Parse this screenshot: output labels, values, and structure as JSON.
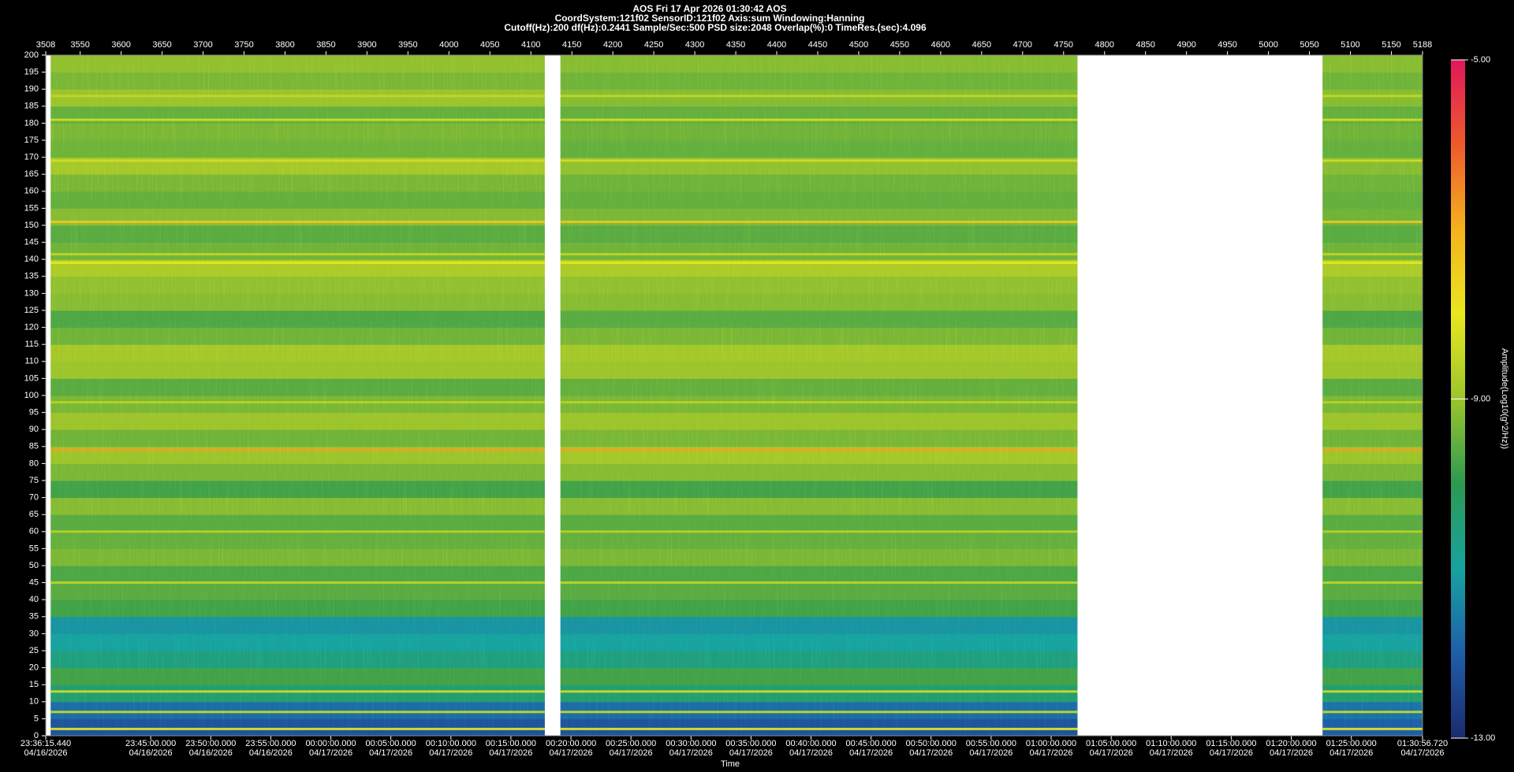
{
  "chart_data": {
    "type": "spectrogram",
    "title": "AOS  Fri 17 Apr 2026 01:30:42  AOS",
    "subtitle": "CoordSystem:121f02   SensorID:121f02   Axis:sum   Windowing:Hanning",
    "settings_line": "Cutoff(Hz):200     df(Hz):0.2441     Sample/Sec:500     PSD size:2048     Overlap(%):0     TimeRes.(sec):4.096",
    "x_label": "Time",
    "colorbar_label": "Amplitude(Log10(g^2/Hz))",
    "xlim": [
      3508,
      5188
    ],
    "xticks": [
      3508,
      3550,
      3600,
      3650,
      3700,
      3750,
      3800,
      3850,
      3900,
      3950,
      4000,
      4050,
      4100,
      4150,
      4200,
      4250,
      4300,
      4350,
      4400,
      4450,
      4500,
      4550,
      4600,
      4650,
      4700,
      4750,
      4800,
      4850,
      4900,
      4950,
      5000,
      5050,
      5100,
      5150,
      5188
    ],
    "x2ticks": [
      {
        "value": 3508,
        "label": "23:36:15.440"
      },
      {
        "value": 3636.1,
        "label": "23:45:00.000"
      },
      {
        "value": 3709.4,
        "label": "23:50:00.000"
      },
      {
        "value": 3782.6,
        "label": "23:55:00.000"
      },
      {
        "value": 3855.9,
        "label": "00:00:00.000"
      },
      {
        "value": 3929.1,
        "label": "00:05:00.000"
      },
      {
        "value": 4002.4,
        "label": "00:10:00.000"
      },
      {
        "value": 4075.6,
        "label": "00:15:00.000"
      },
      {
        "value": 4148.9,
        "label": "00:20:00.000"
      },
      {
        "value": 4222.1,
        "label": "00:25:00.000"
      },
      {
        "value": 4295.4,
        "label": "00:30:00.000"
      },
      {
        "value": 4368.6,
        "label": "00:35:00.000"
      },
      {
        "value": 4441.8,
        "label": "00:40:00.000"
      },
      {
        "value": 4515.1,
        "label": "00:45:00.000"
      },
      {
        "value": 4588.3,
        "label": "00:50:00.000"
      },
      {
        "value": 4661.6,
        "label": "00:55:00.000"
      },
      {
        "value": 4734.8,
        "label": "01:00:00.000"
      },
      {
        "value": 4808.1,
        "label": "01:05:00.000"
      },
      {
        "value": 4881.3,
        "label": "01:10:00.000"
      },
      {
        "value": 4954.6,
        "label": "01:15:00.000"
      },
      {
        "value": 5027.8,
        "label": "01:20:00.000"
      },
      {
        "value": 5101.1,
        "label": "01:25:00.000"
      },
      {
        "value": 5188,
        "label": "01:30:56.720"
      }
    ],
    "x2tick_dates": [
      "04/16/2026",
      "04/16/2026",
      "04/16/2026",
      "04/16/2026",
      "04/17/2026",
      "04/17/2026",
      "04/17/2026",
      "04/17/2026",
      "04/17/2026",
      "04/17/2026",
      "04/17/2026",
      "04/17/2026",
      "04/17/2026",
      "04/17/2026",
      "04/17/2026",
      "04/17/2026",
      "04/17/2026",
      "04/17/2026",
      "04/17/2026",
      "04/17/2026",
      "04/17/2026",
      "04/17/2026",
      "04/17/2026"
    ],
    "ylim": [
      0,
      200
    ],
    "yticks": [
      0,
      5,
      10,
      15,
      20,
      25,
      30,
      35,
      40,
      45,
      50,
      55,
      60,
      65,
      70,
      75,
      80,
      85,
      90,
      95,
      100,
      105,
      110,
      115,
      120,
      125,
      130,
      135,
      140,
      145,
      150,
      155,
      160,
      165,
      170,
      175,
      180,
      185,
      190,
      195,
      200
    ],
    "clim": [
      -13,
      -5
    ],
    "cticks": [
      {
        "value": -13,
        "label": "-13.00"
      },
      {
        "value": -9,
        "label": "-9.00"
      },
      {
        "value": -5,
        "label": "-5.00"
      }
    ],
    "colorscale": [
      "#1c2a6e",
      "#1e5ea8",
      "#18a2a0",
      "#2c9a50",
      "#9cc42c",
      "#e8e81e",
      "#f5b21e",
      "#ee5a2c",
      "#e0185a"
    ],
    "segments": [
      [
        3514,
        4117
      ],
      [
        4136,
        4767
      ],
      [
        5066,
        5188
      ]
    ],
    "freq_bins": [
      0,
      5,
      10,
      15,
      20,
      25,
      30,
      35,
      40,
      45,
      50,
      55,
      60,
      65,
      70,
      75,
      80,
      85,
      90,
      95,
      100,
      105,
      110,
      115,
      120,
      125,
      130,
      135,
      140,
      145,
      150,
      155,
      160,
      165,
      170,
      175,
      180,
      185,
      190,
      195,
      200
    ],
    "z": [
      [
        -12.2,
        -11.8,
        -10.4,
        -9.8,
        -10.6,
        -11.0,
        -11.2,
        -9.8,
        -9.6,
        -9.7,
        -9.3,
        -9.5,
        -9.6,
        -9.2,
        -9.8,
        -9.3,
        -9.0,
        -9.4,
        -9.0,
        -9.3,
        -9.6,
        -9.0,
        -8.9,
        -9.4,
        -9.7,
        -9.2,
        -9.1,
        -8.8,
        -9.4,
        -9.6,
        -9.2,
        -9.5,
        -9.3,
        -8.9,
        -9.4,
        -9.3,
        -9.5,
        -9.0,
        -9.3,
        -9.1
      ],
      [
        -12.2,
        -11.8,
        -10.4,
        -9.8,
        -10.6,
        -11.0,
        -11.2,
        -9.8,
        -9.6,
        -9.7,
        -9.3,
        -9.5,
        -9.6,
        -9.2,
        -9.8,
        -9.2,
        -8.9,
        -9.3,
        -9.0,
        -9.3,
        -9.5,
        -9.0,
        -8.9,
        -9.3,
        -9.6,
        -9.2,
        -9.1,
        -8.8,
        -9.4,
        -9.6,
        -9.3,
        -9.5,
        -9.4,
        -9.1,
        -9.5,
        -9.4,
        -9.5,
        -9.2,
        -9.4,
        -9.2
      ],
      [
        -12.0,
        -11.7,
        -10.4,
        -9.8,
        -10.6,
        -11.0,
        -11.2,
        -9.8,
        -9.6,
        -9.7,
        -9.3,
        -9.5,
        -9.6,
        -9.2,
        -9.8,
        -9.3,
        -9.0,
        -9.4,
        -9.0,
        -9.3,
        -9.6,
        -9.0,
        -8.9,
        -9.4,
        -9.7,
        -9.2,
        -9.1,
        -8.8,
        -9.4,
        -9.6,
        -9.4,
        -9.5,
        -9.4,
        -9.2,
        -9.5,
        -9.4,
        -9.5,
        -9.2,
        -9.4,
        -9.2
      ]
    ],
    "tonal_lines": {
      "freqs": [
        2,
        7,
        13,
        45,
        60,
        84,
        98,
        139,
        141.5,
        151,
        169,
        181,
        188
      ],
      "values": [
        -8.0,
        -8.4,
        -8.3,
        -8.5,
        -8.6,
        -6.8,
        -8.6,
        -8.0,
        -8.5,
        -7.4,
        -8.3,
        -8.3,
        -8.5
      ]
    }
  }
}
